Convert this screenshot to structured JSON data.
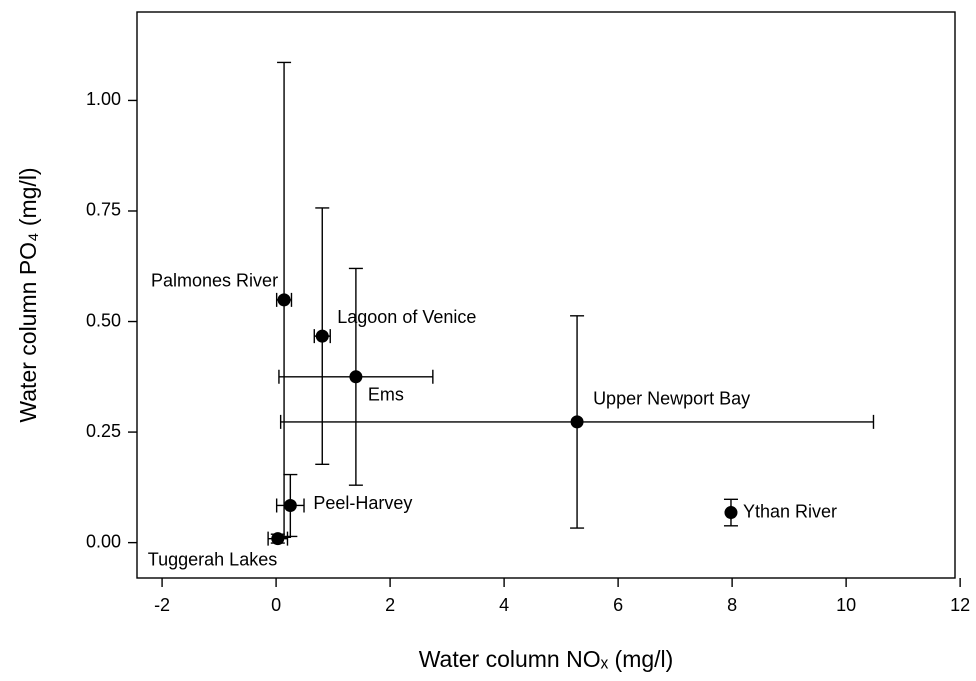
{
  "chart_data": {
    "type": "scatter",
    "x_label": "Water column NOₓ (mg/l)",
    "y_label": "Water column PO₄ (mg/l)",
    "xlim": [
      -2.44,
      11.91
    ],
    "ylim": [
      -0.08,
      1.2
    ],
    "xticks": [
      -2,
      0,
      2,
      4,
      6,
      8,
      10,
      12
    ],
    "yticks": [
      {
        "value": 0,
        "label": "0.00"
      },
      {
        "value": 0.25,
        "label": "0.25"
      },
      {
        "value": 0.5,
        "label": "0.50"
      },
      {
        "value": 0.75,
        "label": "0.75"
      },
      {
        "value": 1,
        "label": "1.00"
      }
    ],
    "color": "#000000",
    "points": [
      {
        "name": "Palmones River",
        "x": 0.14,
        "y": 0.549,
        "xerr": 0.13,
        "yerr": 0.537
      },
      {
        "name": "Lagoon of Venice",
        "x": 0.81,
        "y": 0.467,
        "xerr": 0.14,
        "yerr": 0.29
      },
      {
        "name": "Ems",
        "x": 1.4,
        "y": 0.375,
        "xerr": 1.35,
        "yerr": 0.245
      },
      {
        "name": "Upper Newport Bay",
        "x": 5.28,
        "y": 0.273,
        "xerr": 5.2,
        "yerr": 0.24
      },
      {
        "name": "Ythan River",
        "x": 7.98,
        "y": 0.068,
        "xerr": 0,
        "yerr": 0.03
      },
      {
        "name": "Peel-Harvey",
        "x": 0.25,
        "y": 0.084,
        "xerr": 0.24,
        "yerr": 0.07
      },
      {
        "name": "Tuggerah Lakes",
        "x": 0.03,
        "y": 0.009,
        "xerr": 0.17,
        "yerr": 0.01
      }
    ]
  }
}
